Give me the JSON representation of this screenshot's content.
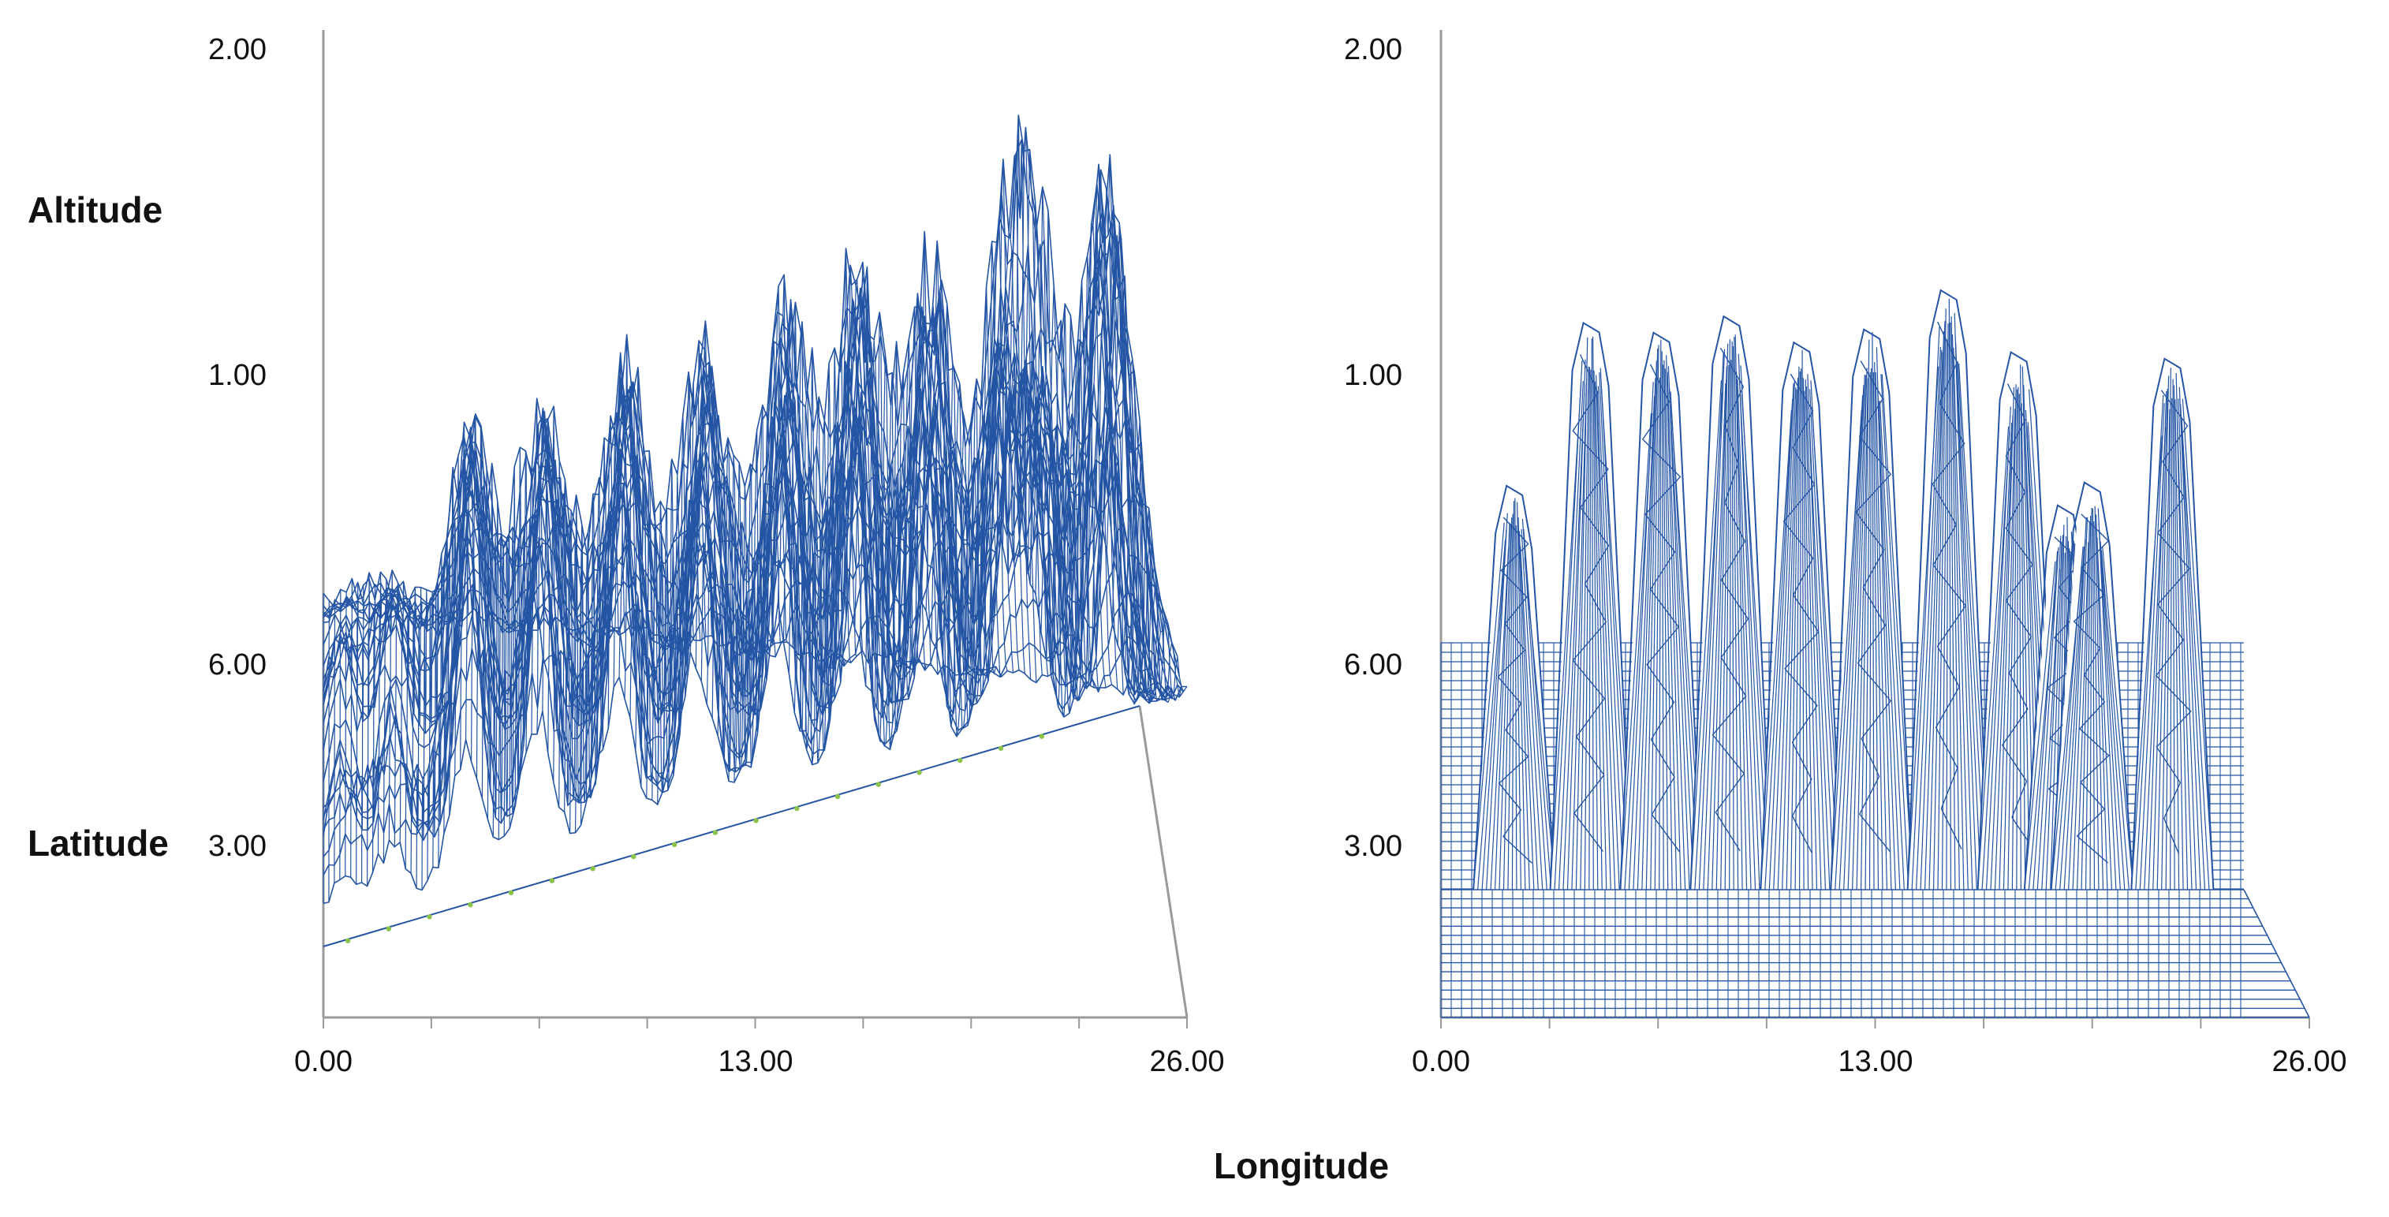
{
  "labels": {
    "altitude": "Altitude",
    "latitude": "Latitude",
    "longitude": "Longitude"
  },
  "colors": {
    "mesh": "#2455a4",
    "axis": "#9a9a9a",
    "marker": "#8bc34a"
  },
  "chart_data": [
    {
      "type": "surface",
      "projection": "oblique",
      "xlabel": "Longitude",
      "ylabel": "Latitude",
      "zlabel": "Altitude",
      "x_ticks": [
        "0.00",
        "13.00",
        "26.00"
      ],
      "z_ticks": [
        "2.00",
        "1.00"
      ],
      "y_ticks": [
        "6.00",
        "3.00"
      ],
      "xlim": [
        0,
        26
      ],
      "ylim": [
        0,
        6
      ],
      "zlim": [
        0,
        2
      ],
      "peaks": [
        {
          "longitude": 0.5,
          "altitude": 0.38
        },
        {
          "longitude": 2.0,
          "altitude": 0.5
        },
        {
          "longitude": 4.2,
          "altitude": 1.07
        },
        {
          "longitude": 6.3,
          "altitude": 1.12
        },
        {
          "longitude": 8.6,
          "altitude": 1.24
        },
        {
          "longitude": 10.9,
          "altitude": 1.26
        },
        {
          "longitude": 13.2,
          "altitude": 1.34
        },
        {
          "longitude": 15.3,
          "altitude": 1.5
        },
        {
          "longitude": 17.4,
          "altitude": 1.43
        },
        {
          "longitude": 19.5,
          "altitude": 1.18
        },
        {
          "longitude": 20.5,
          "altitude": 1.14
        },
        {
          "longitude": 22.5,
          "altitude": 1.66
        }
      ]
    },
    {
      "type": "surface",
      "projection": "front",
      "xlabel": "Longitude",
      "ylabel": "Latitude",
      "zlabel": "Altitude",
      "x_ticks": [
        "0.00",
        "13.00",
        "26.00"
      ],
      "z_ticks": [
        "2.00",
        "1.00"
      ],
      "y_ticks": [
        "6.00",
        "3.00"
      ],
      "xlim": [
        0,
        26
      ],
      "ylim": [
        0,
        6
      ],
      "zlim": [
        0,
        2
      ],
      "peaks": [
        {
          "longitude": 2.2,
          "altitude": 1.24
        },
        {
          "longitude": 4.5,
          "altitude": 1.74
        },
        {
          "longitude": 6.6,
          "altitude": 1.71
        },
        {
          "longitude": 8.7,
          "altitude": 1.76
        },
        {
          "longitude": 10.8,
          "altitude": 1.68
        },
        {
          "longitude": 12.9,
          "altitude": 1.72
        },
        {
          "longitude": 15.2,
          "altitude": 1.84
        },
        {
          "longitude": 17.3,
          "altitude": 1.65
        },
        {
          "longitude": 18.7,
          "altitude": 1.18
        },
        {
          "longitude": 19.5,
          "altitude": 1.25
        },
        {
          "longitude": 21.9,
          "altitude": 1.63
        }
      ]
    }
  ]
}
